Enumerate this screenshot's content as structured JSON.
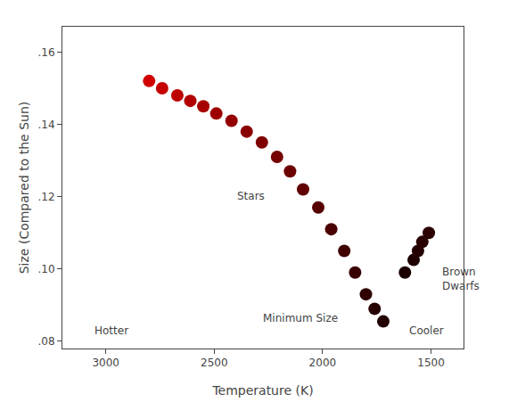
{
  "chart_data": {
    "type": "scatter",
    "xlabel": "Temperature (K)",
    "ylabel": "Size (Compared to the Sun)",
    "xlim": [
      3200,
      1350
    ],
    "ylim": [
      0.078,
      0.167
    ],
    "xticks": [
      3000,
      2500,
      2000,
      1500
    ],
    "yticks": [
      {
        "value": 0.08,
        "label": ".08"
      },
      {
        "value": 0.1,
        "label": ".10"
      },
      {
        "value": 0.12,
        "label": ".12"
      },
      {
        "value": 0.14,
        "label": ".14"
      },
      {
        "value": 0.16,
        "label": ".16"
      }
    ],
    "grid": false,
    "series": [
      {
        "x": [
          2800,
          2740,
          2670,
          2610,
          2550,
          2490,
          2420,
          2350,
          2280,
          2210,
          2150,
          2090,
          2020,
          1960,
          1900,
          1850
        ],
        "values": [
          0.152,
          0.15,
          0.148,
          0.1465,
          0.145,
          0.143,
          0.141,
          0.138,
          0.135,
          0.131,
          0.127,
          0.122,
          0.117,
          0.111,
          0.105,
          0.099
        ],
        "colors": [
          "#d00000",
          "#c60000",
          "#bc0000",
          "#b20000",
          "#a80000",
          "#9e0000",
          "#940000",
          "#8a0000",
          "#800000",
          "#760000",
          "#6c0000",
          "#610000",
          "#560000",
          "#4b0000",
          "#400000",
          "#380000"
        ]
      },
      {
        "x": [
          1800,
          1760,
          1720
        ],
        "values": [
          0.093,
          0.089,
          0.0855
        ],
        "colors": [
          "#2e0000",
          "#260000",
          "#200000"
        ]
      },
      {
        "x": [
          1620,
          1580,
          1560,
          1540,
          1510
        ],
        "values": [
          0.099,
          0.1025,
          0.105,
          0.1075,
          0.11
        ],
        "colors": [
          "#1c0000",
          "#200000",
          "#240000",
          "#280000",
          "#2c0000"
        ]
      }
    ],
    "annotations": [
      {
        "text": "Stars",
        "x": 2330,
        "y": 0.118
      },
      {
        "text": "Minimum Size",
        "x": 1920,
        "y": 0.0865
      },
      {
        "text": "Brown\nDwarfs",
        "x": 1455,
        "y": 0.1015
      },
      {
        "text": "Hotter",
        "x": 3060,
        "y": 0.0808
      },
      {
        "text": "Cooler",
        "x": 1520,
        "y": 0.0808
      }
    ]
  }
}
